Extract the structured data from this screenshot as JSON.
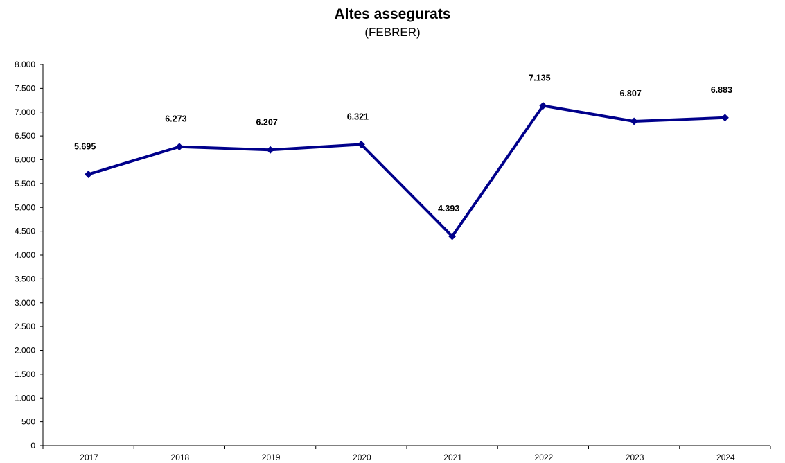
{
  "chart_data": {
    "type": "line",
    "title": "Altes assegurats",
    "subtitle": "(FEBRER)",
    "xlabel": "",
    "ylabel": "",
    "categories": [
      "2017",
      "2018",
      "2019",
      "2020",
      "2021",
      "2022",
      "2023",
      "2024"
    ],
    "series": [
      {
        "values": [
          5695,
          6273,
          6207,
          6321,
          4393,
          7135,
          6807,
          6883
        ],
        "color": "#00008B"
      }
    ],
    "data_labels": [
      "5.695",
      "6.273",
      "6.207",
      "6.321",
      "4.393",
      "7.135",
      "6.807",
      "6.883"
    ],
    "ylim": [
      0,
      8000
    ],
    "y_ticks": [
      0,
      500,
      1000,
      1500,
      2000,
      2500,
      3000,
      3500,
      4000,
      4500,
      5000,
      5500,
      6000,
      6500,
      7000,
      7500,
      8000
    ],
    "y_tick_labels": [
      "0",
      "500",
      "1.000",
      "1.500",
      "2.000",
      "2.500",
      "3.000",
      "3.500",
      "4.000",
      "4.500",
      "5.000",
      "5.500",
      "6.000",
      "6.500",
      "7.000",
      "7.500",
      "8.000"
    ],
    "grid": false,
    "legend": "none",
    "marker": "diamond"
  }
}
